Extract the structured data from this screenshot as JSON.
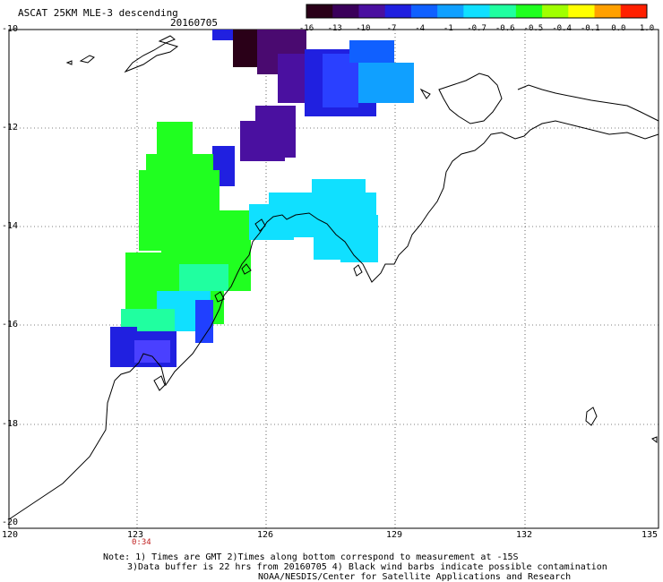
{
  "title": "ASCAT 25KM MLE-3 descending",
  "date": "20160705",
  "colorbar": {
    "labels": [
      "-16",
      "-13",
      "-10",
      "-7",
      "-4",
      "-1",
      "-0.7",
      "-0.6",
      "-0.5",
      "-0.4",
      "-0.1",
      "0.0",
      "1.0"
    ],
    "colors": [
      "#2a0018",
      "#3a005a",
      "#4a10a0",
      "#2020e0",
      "#1060ff",
      "#10a0ff",
      "#10e0ff",
      "#20ffa0",
      "#20ff20",
      "#a0ff00",
      "#ffff00",
      "#ffa000",
      "#ff2000"
    ]
  },
  "axes": {
    "lat_labels": [
      "-10",
      "-12",
      "-14",
      "-16",
      "-18",
      "-20"
    ],
    "lon_labels": [
      "120",
      "123",
      "126",
      "129",
      "132",
      "135"
    ]
  },
  "time_label": "0:34",
  "notes": [
    "Note: 1) Times are GMT 2)Times along bottom correspond to measurement at -15S",
    "3)Data buffer is 22 hrs from 20160705 4) Black wind barbs indicate possible contamination",
    "NOAA/NESDIS/Center for Satellite Applications and Research"
  ]
}
